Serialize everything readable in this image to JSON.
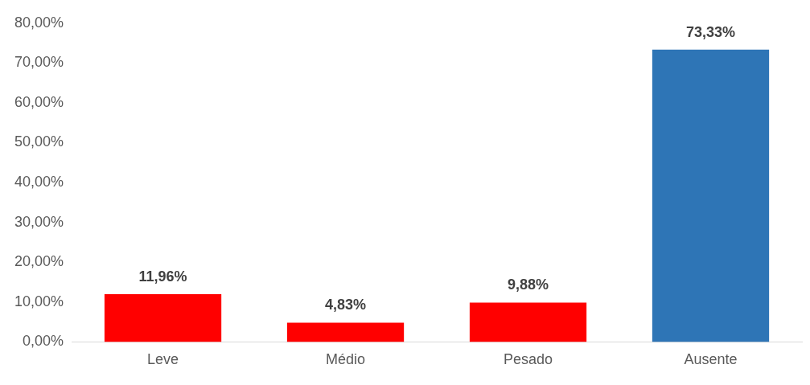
{
  "chart_data": {
    "type": "bar",
    "categories": [
      "Leve",
      "Médio",
      "Pesado",
      "Ausente"
    ],
    "values": [
      11.96,
      4.83,
      9.88,
      73.33
    ],
    "colors": [
      "#ff0000",
      "#ff0000",
      "#ff0000",
      "#2e75b6"
    ],
    "value_labels": [
      "11,96%",
      "4,83%",
      "9,88%",
      "73,33%"
    ],
    "ylim": [
      0,
      80
    ],
    "yticks": [
      {
        "value": 0,
        "label": "0,00%"
      },
      {
        "value": 10,
        "label": "10,00%"
      },
      {
        "value": 20,
        "label": "20,00%"
      },
      {
        "value": 30,
        "label": "30,00%"
      },
      {
        "value": 40,
        "label": "40,00%"
      },
      {
        "value": 50,
        "label": "50,00%"
      },
      {
        "value": 60,
        "label": "60,00%"
      },
      {
        "value": 70,
        "label": "70,00%"
      },
      {
        "value": 80,
        "label": "80,00%"
      }
    ]
  }
}
